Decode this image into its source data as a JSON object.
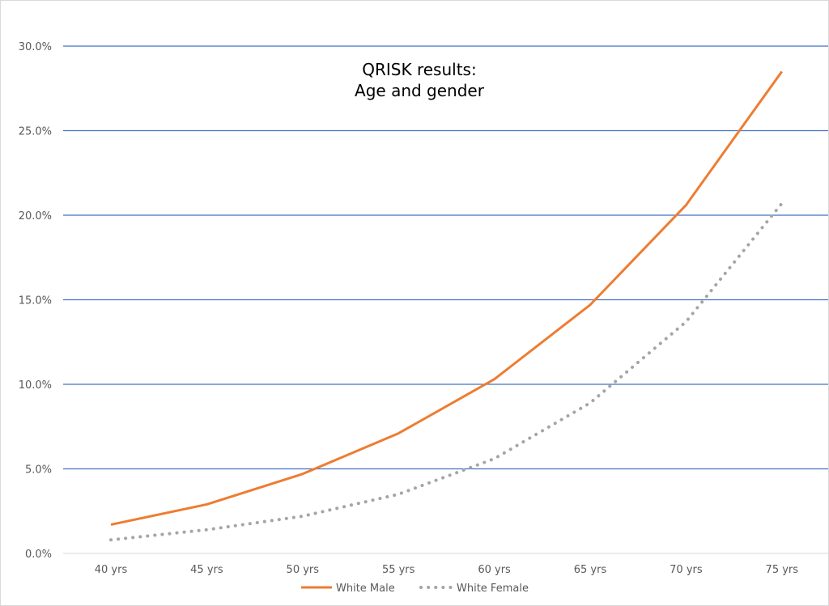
{
  "chart_data": {
    "type": "line",
    "title_lines": [
      "QRISK results:",
      "Age and gender"
    ],
    "categories": [
      "40 yrs",
      "45 yrs",
      "50 yrs",
      "55 yrs",
      "60 yrs",
      "65 yrs",
      "70 yrs",
      "75 yrs"
    ],
    "series": [
      {
        "name": "White Male",
        "values": [
          1.7,
          2.9,
          4.7,
          7.1,
          10.3,
          14.7,
          20.6,
          28.5
        ],
        "color": "#ed7d31",
        "style": "solid"
      },
      {
        "name": "White Female",
        "values": [
          0.8,
          1.4,
          2.2,
          3.5,
          5.6,
          8.9,
          13.7,
          20.7
        ],
        "color": "#a5a5a5",
        "style": "dotted"
      }
    ],
    "yticks": [
      "0.0%",
      "5.0%",
      "10.0%",
      "15.0%",
      "20.0%",
      "25.0%",
      "30.0%"
    ],
    "ylim": [
      0,
      30
    ],
    "grid": true,
    "grid_color": "#4472c4",
    "legend_position": "bottom",
    "xlabel": "",
    "ylabel": ""
  }
}
